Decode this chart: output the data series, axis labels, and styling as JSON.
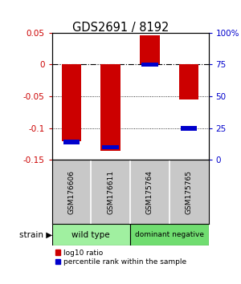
{
  "title": "GDS2691 / 8192",
  "samples": [
    "GSM176606",
    "GSM176611",
    "GSM175764",
    "GSM175765"
  ],
  "log10_ratio": [
    -0.12,
    -0.135,
    0.046,
    -0.055
  ],
  "percentile_rank": [
    0.14,
    0.1,
    0.75,
    0.25
  ],
  "ylim_left": [
    -0.15,
    0.05
  ],
  "ylim_right": [
    0,
    100
  ],
  "group_labels": [
    "wild type",
    "dominant negative"
  ],
  "group_colors": [
    "#a0f0a0",
    "#70dd70"
  ],
  "bar_color_red": "#cc0000",
  "bar_color_blue": "#0000cc",
  "bar_width": 0.5,
  "legend_red": "log10 ratio",
  "legend_blue": "percentile rank within the sample",
  "background_color": "#ffffff",
  "label_bg_color": "#c8c8c8"
}
